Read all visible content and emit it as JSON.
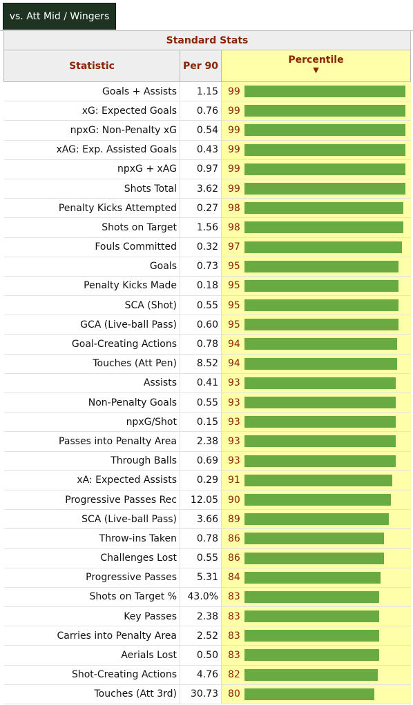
{
  "tab": {
    "label": "vs. Att Mid / Wingers"
  },
  "table": {
    "group_header": "Standard Stats",
    "columns": {
      "statistic": "Statistic",
      "per90": "Per 90",
      "percentile": "Percentile",
      "sort_icon": "▼"
    },
    "bar_color": "#6aaa43",
    "rows": [
      {
        "stat": "Goals + Assists",
        "per90": "1.15",
        "pct": 99
      },
      {
        "stat": "xG: Expected Goals",
        "per90": "0.76",
        "pct": 99
      },
      {
        "stat": "npxG: Non-Penalty xG",
        "per90": "0.54",
        "pct": 99
      },
      {
        "stat": "xAG: Exp. Assisted Goals",
        "per90": "0.43",
        "pct": 99
      },
      {
        "stat": "npxG + xAG",
        "per90": "0.97",
        "pct": 99
      },
      {
        "stat": "Shots Total",
        "per90": "3.62",
        "pct": 99
      },
      {
        "stat": "Penalty Kicks Attempted",
        "per90": "0.27",
        "pct": 98
      },
      {
        "stat": "Shots on Target",
        "per90": "1.56",
        "pct": 98
      },
      {
        "stat": "Fouls Committed",
        "per90": "0.32",
        "pct": 97
      },
      {
        "stat": "Goals",
        "per90": "0.73",
        "pct": 95
      },
      {
        "stat": "Penalty Kicks Made",
        "per90": "0.18",
        "pct": 95
      },
      {
        "stat": "SCA (Shot)",
        "per90": "0.55",
        "pct": 95
      },
      {
        "stat": "GCA (Live-ball Pass)",
        "per90": "0.60",
        "pct": 95
      },
      {
        "stat": "Goal-Creating Actions",
        "per90": "0.78",
        "pct": 94
      },
      {
        "stat": "Touches (Att Pen)",
        "per90": "8.52",
        "pct": 94
      },
      {
        "stat": "Assists",
        "per90": "0.41",
        "pct": 93
      },
      {
        "stat": "Non-Penalty Goals",
        "per90": "0.55",
        "pct": 93
      },
      {
        "stat": "npxG/Shot",
        "per90": "0.15",
        "pct": 93
      },
      {
        "stat": "Passes into Penalty Area",
        "per90": "2.38",
        "pct": 93
      },
      {
        "stat": "Through Balls",
        "per90": "0.69",
        "pct": 93
      },
      {
        "stat": "xA: Expected Assists",
        "per90": "0.29",
        "pct": 91
      },
      {
        "stat": "Progressive Passes Rec",
        "per90": "12.05",
        "pct": 90
      },
      {
        "stat": "SCA (Live-ball Pass)",
        "per90": "3.66",
        "pct": 89
      },
      {
        "stat": "Throw-ins Taken",
        "per90": "0.78",
        "pct": 86
      },
      {
        "stat": "Challenges Lost",
        "per90": "0.55",
        "pct": 86
      },
      {
        "stat": "Progressive Passes",
        "per90": "5.31",
        "pct": 84
      },
      {
        "stat": "Shots on Target %",
        "per90": "43.0%",
        "pct": 83
      },
      {
        "stat": "Key Passes",
        "per90": "2.38",
        "pct": 83
      },
      {
        "stat": "Carries into Penalty Area",
        "per90": "2.52",
        "pct": 83
      },
      {
        "stat": "Aerials Lost",
        "per90": "0.50",
        "pct": 83
      },
      {
        "stat": "Shot-Creating Actions",
        "per90": "4.76",
        "pct": 82
      },
      {
        "stat": "Touches (Att 3rd)",
        "per90": "30.73",
        "pct": 80
      }
    ]
  }
}
